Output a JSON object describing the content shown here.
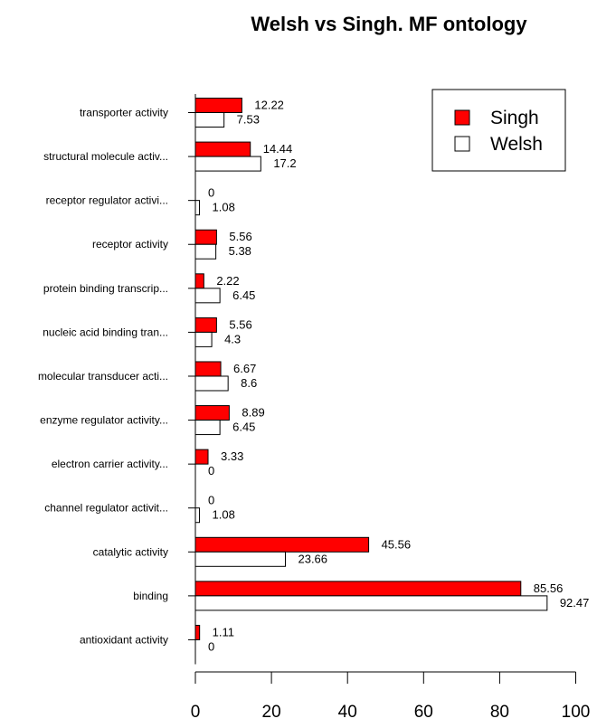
{
  "chart_data": {
    "type": "bar",
    "orientation": "horizontal",
    "title": "Welsh vs Singh. MF ontology",
    "xlabel": "",
    "ylabel": "",
    "xlim": [
      0,
      100
    ],
    "x_ticks": [
      "0",
      "20",
      "40",
      "60",
      "80",
      "100"
    ],
    "grid": false,
    "legend_position": "top-right",
    "categories": [
      "transporter activity",
      "structural molecule activ...",
      "receptor regulator activi...",
      "receptor activity",
      "protein binding transcrip...",
      "nucleic acid binding tran...",
      "molecular transducer acti...",
      "enzyme regulator activity...",
      "electron carrier activity...",
      "channel regulator activit...",
      "catalytic activity",
      "binding",
      "antioxidant activity"
    ],
    "series": [
      {
        "name": "Singh",
        "color": "#ff0000",
        "values": [
          12.22,
          14.44,
          0,
          5.56,
          2.22,
          5.56,
          6.67,
          8.89,
          3.33,
          0,
          45.56,
          85.56,
          1.11
        ],
        "labels": [
          "12.22",
          "14.44",
          "0",
          "5.56",
          "2.22",
          "5.56",
          "6.67",
          "8.89",
          "3.33",
          "0",
          "45.56",
          "85.56",
          "1.11"
        ]
      },
      {
        "name": "Welsh",
        "color": "#ffffff",
        "values": [
          7.53,
          17.2,
          1.08,
          5.38,
          6.45,
          4.3,
          8.6,
          6.45,
          0,
          1.08,
          23.66,
          92.47,
          0
        ],
        "labels": [
          "7.53",
          "17.2",
          "1.08",
          "5.38",
          "6.45",
          "4.3",
          "8.6",
          "6.45",
          "0",
          "1.08",
          "23.66",
          "92.47",
          "0"
        ]
      }
    ]
  }
}
